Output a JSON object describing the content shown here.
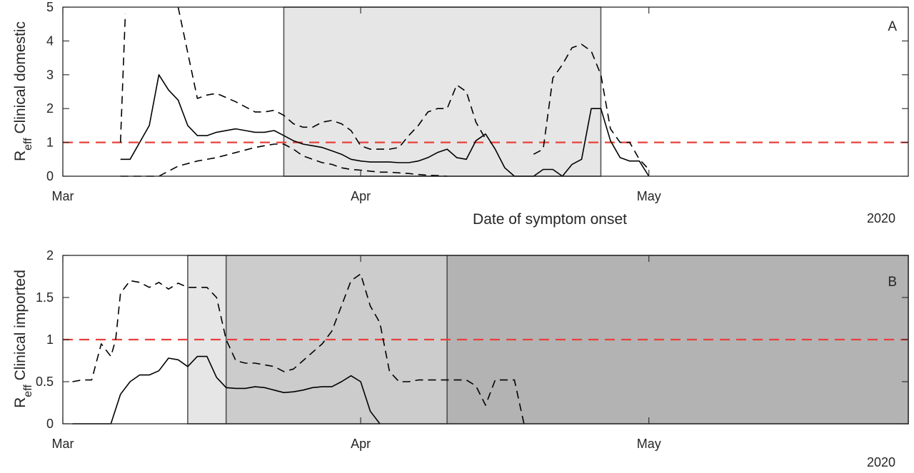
{
  "chart_data": [
    {
      "type": "line",
      "panel_label": "A",
      "ylabel_main": "R",
      "ylabel_sub": "eff",
      "ylabel_rest": " Clinical domestic",
      "xlabel": "Date of symptom onset",
      "year_label": "2020",
      "xlim": [
        0,
        88
      ],
      "ylim": [
        0,
        5
      ],
      "y_ticks": [
        0,
        1,
        2,
        3,
        4,
        5
      ],
      "y_tick_labels": [
        "0",
        "1",
        "2",
        "3",
        "4",
        "5"
      ],
      "x_ticks": [
        0,
        31,
        61
      ],
      "x_tick_labels": [
        "Mar",
        "Apr",
        "May"
      ],
      "grid": false,
      "threshold": 1,
      "threshold_color": "#e8413a",
      "shaded_regions": [
        {
          "x_start": 23,
          "x_end": 56,
          "color": "#e6e6e6"
        }
      ],
      "series": [
        {
          "style": "solid",
          "color": "#000000",
          "x": [
            6,
            7,
            9,
            10,
            11,
            12,
            13,
            14,
            15,
            16,
            18,
            19,
            20,
            21,
            22,
            23,
            24,
            25,
            26,
            27,
            28,
            29,
            30,
            31,
            32,
            33,
            34,
            35,
            36,
            37,
            38,
            39,
            40,
            41,
            42,
            43,
            44,
            45,
            46,
            47,
            48,
            49,
            50,
            51,
            52,
            53,
            54,
            55,
            56,
            57,
            58,
            59,
            60,
            61
          ],
          "y": [
            0.5,
            0.5,
            1.5,
            3.0,
            2.55,
            2.25,
            1.5,
            1.2,
            1.2,
            1.3,
            1.4,
            1.35,
            1.3,
            1.3,
            1.35,
            1.2,
            1.05,
            0.95,
            0.9,
            0.85,
            0.75,
            0.65,
            0.5,
            0.45,
            0.42,
            0.42,
            0.42,
            0.4,
            0.4,
            0.45,
            0.55,
            0.7,
            0.8,
            0.55,
            0.5,
            1.05,
            1.25,
            0.8,
            0.25,
            0.0,
            0.0,
            0.0,
            0.2,
            0.2,
            0.0,
            0.35,
            0.5,
            2.0,
            2.0,
            1.05,
            0.55,
            0.45,
            0.45,
            0.0
          ]
        },
        {
          "style": "dashed",
          "color": "#000000",
          "x": [
            6,
            6.5,
            10,
            12,
            14,
            15,
            16,
            18,
            20,
            21,
            22,
            23,
            24,
            25,
            26,
            27,
            28,
            29,
            30,
            31,
            32,
            33,
            34,
            35,
            36,
            37,
            38,
            39,
            40,
            41,
            42,
            43,
            44,
            45,
            46,
            47,
            48,
            49,
            50,
            51,
            52,
            53,
            54,
            55,
            56,
            57,
            58,
            59,
            60,
            61,
            62,
            63
          ],
          "y": [
            1.0,
            4.8,
            null,
            5.0,
            2.3,
            2.4,
            2.45,
            2.2,
            1.9,
            1.9,
            1.95,
            1.8,
            1.55,
            1.45,
            1.45,
            1.6,
            1.65,
            1.55,
            1.35,
            0.9,
            0.8,
            0.8,
            0.8,
            0.85,
            1.2,
            1.5,
            1.9,
            2.0,
            2.0,
            2.7,
            2.5,
            1.6,
            1.1,
            null,
            null,
            null,
            null,
            0.65,
            0.8,
            2.9,
            3.3,
            3.8,
            3.9,
            3.7,
            3.0,
            1.4,
            1.0,
            1.0,
            0.5,
            0.2,
            null,
            null
          ]
        },
        {
          "style": "dashed",
          "color": "#000000",
          "x": [
            6,
            9,
            10,
            12,
            14,
            16,
            18,
            20,
            21,
            22,
            23,
            24,
            25,
            26,
            27,
            28,
            29,
            30,
            31,
            32,
            33,
            34,
            35,
            36,
            37,
            38,
            39,
            40
          ],
          "y": [
            0.0,
            0.0,
            0.0,
            0.3,
            0.45,
            0.55,
            0.7,
            0.85,
            0.9,
            0.95,
            0.95,
            0.8,
            0.6,
            0.5,
            0.4,
            0.35,
            0.25,
            0.2,
            0.18,
            0.15,
            0.12,
            0.12,
            0.1,
            0.08,
            0.05,
            0.03,
            0.02,
            0.0
          ]
        }
      ]
    },
    {
      "type": "line",
      "panel_label": "B",
      "ylabel_main": "R",
      "ylabel_sub": "eff",
      "ylabel_rest": " Clinical imported",
      "xlabel": "",
      "year_label": "2020",
      "xlim": [
        0,
        88
      ],
      "ylim": [
        0,
        2
      ],
      "y_ticks": [
        0,
        0.5,
        1,
        1.5,
        2
      ],
      "y_tick_labels": [
        "0",
        "0.5",
        "1",
        "1.5",
        "2"
      ],
      "x_ticks": [
        0,
        31,
        61
      ],
      "x_tick_labels": [
        "Mar",
        "Apr",
        "May"
      ],
      "grid": false,
      "threshold": 1,
      "threshold_color": "#e8413a",
      "shaded_regions": [
        {
          "x_start": 13,
          "x_end": 17,
          "color": "#e6e6e6"
        },
        {
          "x_start": 17,
          "x_end": 40,
          "color": "#cccccc"
        },
        {
          "x_start": 40,
          "x_end": 88,
          "color": "#b3b3b3"
        }
      ],
      "series": [
        {
          "style": "solid",
          "color": "#000000",
          "x": [
            1,
            5,
            6,
            7,
            8,
            9,
            10,
            11,
            12,
            13,
            14,
            15,
            16,
            17,
            18,
            19,
            20,
            21,
            22,
            23,
            24,
            25,
            26,
            27,
            28,
            29,
            30,
            31,
            32,
            33
          ],
          "y": [
            0.0,
            0.0,
            0.35,
            0.5,
            0.58,
            0.58,
            0.63,
            0.78,
            0.76,
            0.68,
            0.8,
            0.8,
            0.55,
            0.43,
            0.42,
            0.42,
            0.44,
            0.43,
            0.4,
            0.37,
            0.38,
            0.4,
            0.43,
            0.44,
            0.44,
            0.5,
            0.57,
            0.5,
            0.15,
            0.0
          ]
        },
        {
          "style": "dashed",
          "color": "#000000",
          "x": [
            1,
            2,
            3,
            4,
            5,
            5.5,
            6,
            7,
            8,
            9,
            10,
            11,
            12,
            13,
            14,
            15,
            16,
            17,
            18,
            19,
            20,
            21,
            22,
            23,
            24,
            25,
            26,
            27,
            28,
            29,
            30,
            31,
            32,
            33,
            34,
            35,
            36,
            37,
            38,
            39,
            40,
            41,
            42,
            43,
            44,
            45,
            46,
            47,
            48
          ],
          "y": [
            0.5,
            0.52,
            0.52,
            0.95,
            0.8,
            1.0,
            1.55,
            1.7,
            1.68,
            1.62,
            1.68,
            1.6,
            1.67,
            1.62,
            1.62,
            1.62,
            1.5,
            1.0,
            0.75,
            0.72,
            0.72,
            0.7,
            0.68,
            0.62,
            0.65,
            0.75,
            0.85,
            0.95,
            1.1,
            1.4,
            1.7,
            1.78,
            1.4,
            1.2,
            0.62,
            0.5,
            0.5,
            0.52,
            0.52,
            0.52,
            0.52,
            0.52,
            0.52,
            0.45,
            0.22,
            0.52,
            0.52,
            0.52,
            0.0
          ]
        }
      ]
    }
  ]
}
